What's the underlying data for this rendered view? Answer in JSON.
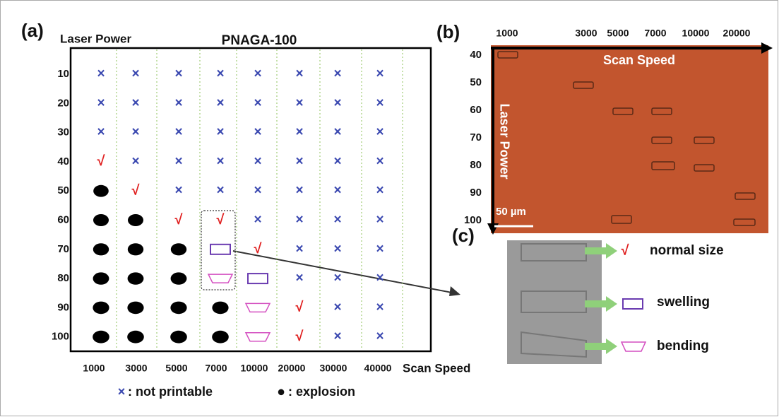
{
  "panel_a": {
    "label": "(a)",
    "y_title": "Laser Power",
    "title": "PNAGA-100",
    "x_title": "Scan Speed",
    "rows": [
      "10",
      "20",
      "30",
      "40",
      "50",
      "60",
      "70",
      "80",
      "90",
      "100"
    ],
    "columns": [
      "1000",
      "3000",
      "5000",
      "7000",
      "10000",
      "20000",
      "30000",
      "40000"
    ],
    "cells": [
      [
        "×",
        "×",
        "×",
        "×",
        "×",
        "×",
        "×",
        "×"
      ],
      [
        "×",
        "×",
        "×",
        "×",
        "×",
        "×",
        "×",
        "×"
      ],
      [
        "×",
        "×",
        "×",
        "×",
        "×",
        "×",
        "×",
        "×"
      ],
      [
        "√",
        "×",
        "×",
        "×",
        "×",
        "×",
        "×",
        "×"
      ],
      [
        "●",
        "√",
        "×",
        "×",
        "×",
        "×",
        "×",
        "×"
      ],
      [
        "●",
        "●",
        "√",
        "√",
        "×",
        "×",
        "×",
        "×"
      ],
      [
        "●",
        "●",
        "●",
        "swelling",
        "√",
        "×",
        "×",
        "×"
      ],
      [
        "●",
        "●",
        "●",
        "bending",
        "swelling",
        "×",
        "×",
        "×"
      ],
      [
        "●",
        "●",
        "●",
        "●",
        "bending",
        "√",
        "×",
        "×"
      ],
      [
        "●",
        "●",
        "●",
        "●",
        "bending",
        "√",
        "×",
        "×"
      ]
    ],
    "legend": [
      {
        "symbol": "×",
        "text": ": not printable"
      },
      {
        "symbol": "●",
        "text": ": explosion"
      }
    ]
  },
  "panel_b": {
    "label": "(b)",
    "x_title": "Scan Speed",
    "y_title": "Laser Power",
    "columns": [
      "1000",
      "3000",
      "5000",
      "7000",
      "10000",
      "20000"
    ],
    "rows": [
      "40",
      "50",
      "60",
      "70",
      "80",
      "90",
      "100"
    ],
    "scale_bar": "50 µm"
  },
  "panel_c": {
    "label": "(c)",
    "items": [
      {
        "symbol": "√",
        "text": "normal size"
      },
      {
        "text": "swelling"
      },
      {
        "text": "bending"
      }
    ]
  }
}
